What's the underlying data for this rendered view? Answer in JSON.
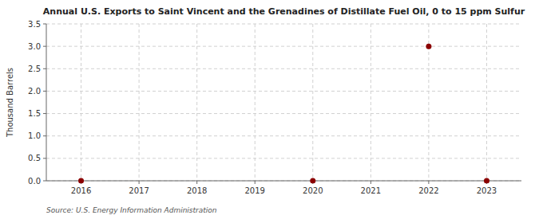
{
  "chart_data": {
    "type": "scatter",
    "title": "Annual U.S. Exports to Saint Vincent and the Grenadines of Distillate Fuel Oil, 0 to 15 ppm Sulfur",
    "y_label": "Thousand Barrels",
    "source": "Source: U.S. Energy Information Administration",
    "x": [
      2016,
      2017,
      2018,
      2019,
      2020,
      2021,
      2022,
      2023
    ],
    "values": [
      0.0,
      null,
      null,
      null,
      0.0,
      null,
      3.0,
      0.0
    ],
    "color": "#8b0000",
    "xlim": [
      2015.4,
      2023.6
    ],
    "xticks": [
      2016,
      2017,
      2018,
      2019,
      2020,
      2021,
      2022,
      2023
    ],
    "ylim": [
      0,
      3.5
    ],
    "yticks": [
      {
        "value": 0,
        "label": "0.0"
      },
      0.5,
      {
        "value": 1,
        "label": "1.0"
      },
      1.5,
      {
        "value": 2,
        "label": "2.0"
      },
      2.5,
      {
        "value": 3,
        "label": "3.0"
      },
      3.5
    ],
    "grid": true
  }
}
